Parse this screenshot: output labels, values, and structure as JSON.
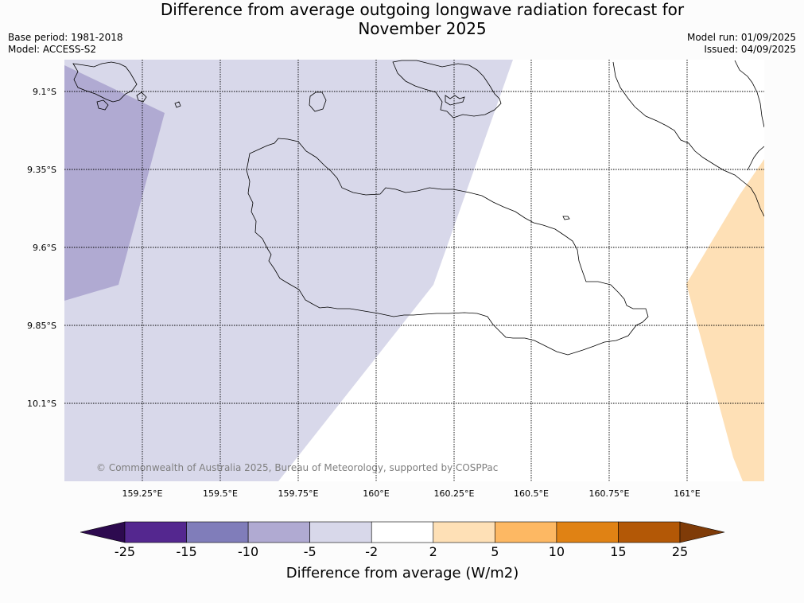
{
  "title_line1": "Difference from average outgoing longwave radiation forecast for",
  "title_line2": "November 2025",
  "base_period": "Base period: 1981-2018",
  "model": "Model: ACCESS-S2",
  "model_run": "Model run: 01/09/2025",
  "issued": "Issued: 04/09/2025",
  "copyright": "© Commonwealth of Australia 2025, Bureau of Meteorology, supported by COSPPac",
  "lat_labels": [
    "9.1°S",
    "9.35°S",
    "9.6°S",
    "9.85°S",
    "10.1°S"
  ],
  "lon_labels": [
    "159.25°E",
    "159.5°E",
    "159.75°E",
    "160°E",
    "160.25°E",
    "160.5°E",
    "160.75°E",
    "161°E"
  ],
  "colorbar": {
    "title": "Difference from average (W/m2)",
    "ticks": [
      "-25",
      "-15",
      "-10",
      "-5",
      "-2",
      "2",
      "5",
      "10",
      "15",
      "25"
    ],
    "colors": [
      "#2d0a4f",
      "#54278f",
      "#807dba",
      "#b0aad2",
      "#d8d8ea",
      "#ffffff",
      "#fee0b6",
      "#fdb863",
      "#e08214",
      "#b35806",
      "#7f3b08"
    ]
  }
}
